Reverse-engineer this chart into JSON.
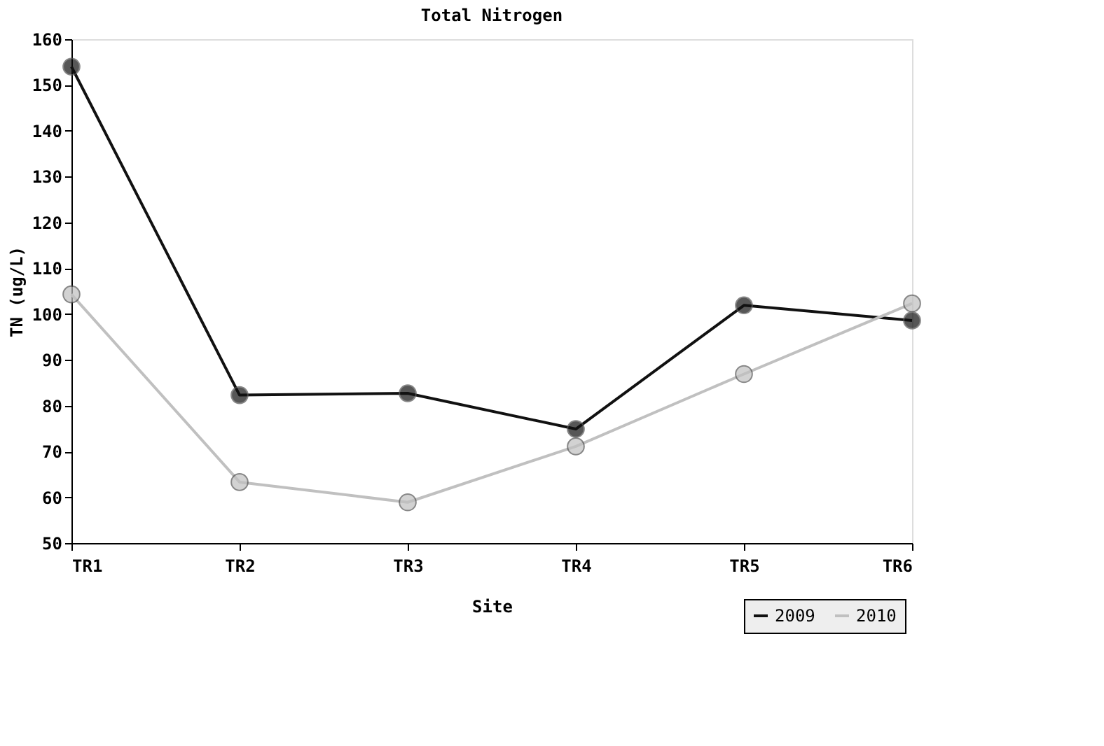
{
  "chart_data": {
    "type": "line",
    "title": "Total Nitrogen",
    "xlabel": "Site",
    "ylabel": "TN (ug/L)",
    "categories": [
      "TR1",
      "TR2",
      "TR3",
      "TR4",
      "TR5",
      "TR6"
    ],
    "series": [
      {
        "name": "2009",
        "color": "#111111",
        "values": [
          154,
          82.3,
          82.7,
          74.9,
          101.9,
          98.6
        ]
      },
      {
        "name": "2010",
        "color": "#c0c0c0",
        "values": [
          104.3,
          63.3,
          58.9,
          71.1,
          86.9,
          102.3
        ]
      }
    ],
    "ylim": [
      50,
      160
    ],
    "yticks": [
      50,
      60,
      70,
      80,
      90,
      100,
      110,
      120,
      130,
      140,
      150,
      160
    ],
    "grid": false,
    "legend": "bottom right",
    "marker": "circle",
    "line_style": "solid"
  }
}
